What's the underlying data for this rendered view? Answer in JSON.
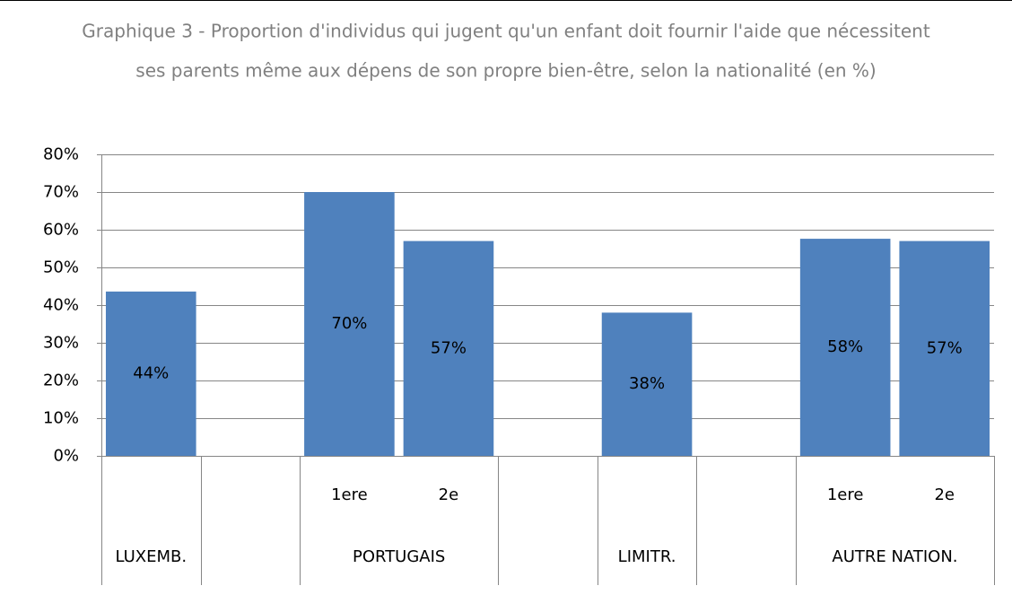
{
  "chart_data": {
    "type": "bar",
    "title": [
      "Graphique 3 - Proportion d'individus qui jugent qu'un enfant doit fournir l'aide que nécessitent",
      "ses parents même aux dépens de son propre bien-être, selon la nationalité (en %)"
    ],
    "categories": [
      null,
      null,
      "1ere",
      "2e",
      null,
      null,
      null,
      "1ere",
      "2e"
    ],
    "groups": [
      {
        "label": "LUXEMB.",
        "count": 1
      },
      {
        "label": null,
        "count": 1
      },
      {
        "label": "PORTUGAIS",
        "count": 2
      },
      {
        "label": null,
        "count": 1
      },
      {
        "label": "LIMITR.",
        "count": 1
      },
      {
        "label": null,
        "count": 1
      },
      {
        "label": "AUTRE NATION.",
        "count": 2
      }
    ],
    "values": [
      43.6,
      null,
      70,
      57,
      null,
      38,
      null,
      57.6,
      57
    ],
    "value_labels": [
      "44%",
      null,
      "70%",
      "57%",
      null,
      "38%",
      null,
      "58%",
      "57%"
    ],
    "color": "#4f81bd",
    "ylim": [
      0,
      80
    ],
    "yticks": [
      {
        "value": 0,
        "label": "0%"
      },
      {
        "value": 10,
        "label": "10%"
      },
      {
        "value": 20,
        "label": "20%"
      },
      {
        "value": 30,
        "label": "30%"
      },
      {
        "value": 40,
        "label": "40%"
      },
      {
        "value": 50,
        "label": "50%"
      },
      {
        "value": 60,
        "label": "60%"
      },
      {
        "value": 70,
        "label": "70%"
      },
      {
        "value": 80,
        "label": "80%"
      }
    ],
    "grid": true
  }
}
